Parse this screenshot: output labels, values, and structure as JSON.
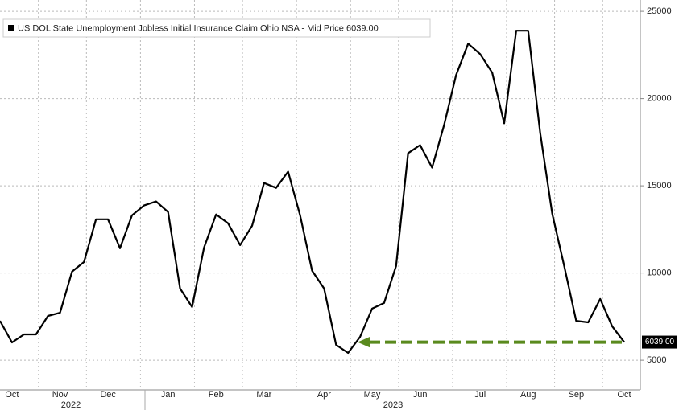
{
  "chart_data": {
    "type": "line",
    "legend": "US DOL State Unemployment Jobless Initial Insurance Claim Ohio NSA - Mid Price 6039.00",
    "categories": [
      null,
      "Oct",
      null,
      null,
      null,
      "Nov",
      null,
      null,
      null,
      "Dec",
      null,
      null,
      null,
      null,
      "Jan",
      null,
      null,
      null,
      "Feb",
      null,
      null,
      null,
      "Mar",
      null,
      null,
      null,
      null,
      "Apr",
      null,
      null,
      null,
      "May",
      null,
      null,
      null,
      "Jun",
      null,
      null,
      null,
      null,
      "Jul",
      null,
      null,
      null,
      "Aug",
      null,
      null,
      null,
      "Sep",
      null,
      null,
      null,
      "Oct"
    ],
    "year_labels": [
      "2022",
      "2023"
    ],
    "series": [
      {
        "name": "US DOL State Unemployment Jobless Initial Insurance Claim Ohio NSA",
        "color": "#000000",
        "values": [
          7260,
          6020,
          6480,
          6480,
          7540,
          7720,
          10080,
          10630,
          13080,
          13080,
          11420,
          13310,
          13870,
          14100,
          13500,
          9110,
          8050,
          11470,
          13360,
          12850,
          11600,
          12710,
          15160,
          14880,
          15810,
          13310,
          10130,
          9110,
          5880,
          5420,
          6340,
          7960,
          8280,
          10400,
          16870,
          17330,
          16040,
          18490,
          21350,
          23150,
          22550,
          21490,
          18580,
          23890,
          23890,
          18030,
          13410,
          10400,
          7260,
          7170,
          8510,
          6940,
          6039
        ]
      }
    ],
    "last_value_label": "6039.00",
    "annotation_color": "#5a8a1e",
    "ylim": [
      3300,
      25650
    ],
    "yticks": [
      5000,
      10000,
      15000,
      20000,
      25000
    ],
    "grid": true
  }
}
